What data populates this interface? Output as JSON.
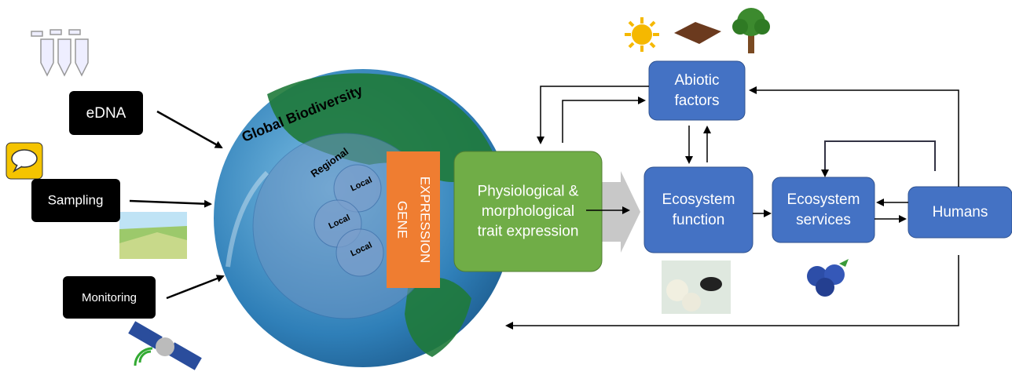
{
  "sources": [
    {
      "label": "eDNA"
    },
    {
      "label": "Sampling"
    },
    {
      "label": "Monitoring"
    }
  ],
  "globe": {
    "title": "Global Biodiversity",
    "regional": "Regional",
    "local": [
      "Local",
      "Local",
      "Local"
    ]
  },
  "gene_expression": [
    "GENE",
    "EXPRESSION"
  ],
  "boxes": [
    {
      "lines": [
        "Physiological &",
        "morphological",
        "trait expression"
      ]
    },
    {
      "lines": [
        "Abiotic",
        "factors"
      ]
    },
    {
      "lines": [
        "Ecosystem",
        "function"
      ]
    },
    {
      "lines": [
        "Ecosystem",
        "services"
      ]
    },
    {
      "lines": [
        "Humans"
      ]
    }
  ]
}
